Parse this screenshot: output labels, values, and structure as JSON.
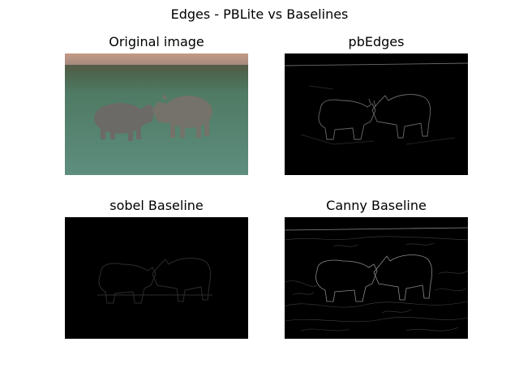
{
  "figure": {
    "title": "Edges - PBLite vs Baselines"
  },
  "panels": [
    {
      "title": "Original image"
    },
    {
      "title": "pbEdges"
    },
    {
      "title": "sobel Baseline"
    },
    {
      "title": "Canny Baseline"
    }
  ]
}
